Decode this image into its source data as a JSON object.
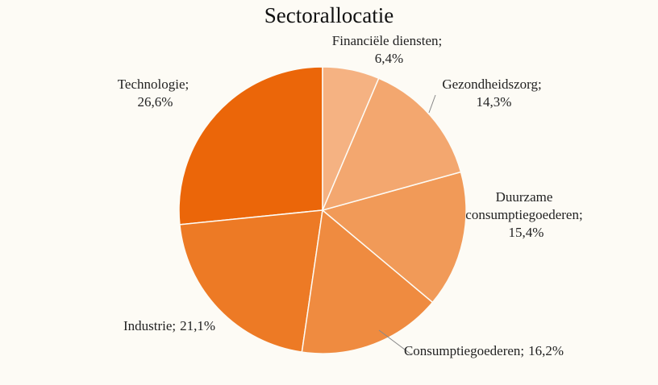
{
  "chart_data": {
    "type": "pie",
    "title": "Sectorallocatie",
    "categories": [
      "Financiële diensten;",
      "Gezondheidszorg;",
      "Duurzame consumptiegoederen;",
      "Consumptiegoederen;",
      "Industrie;",
      "Technologie;"
    ],
    "values": [
      6.4,
      14.3,
      15.4,
      16.2,
      21.1,
      26.6
    ],
    "value_labels": [
      "6,4%",
      "14,3%",
      "15,4%",
      "16,2%",
      "21,1%",
      "26,6%"
    ],
    "colors": [
      "#f5b282",
      "#f3a76f",
      "#f19a58",
      "#ef8b40",
      "#ed7a25",
      "#eb6609"
    ]
  }
}
